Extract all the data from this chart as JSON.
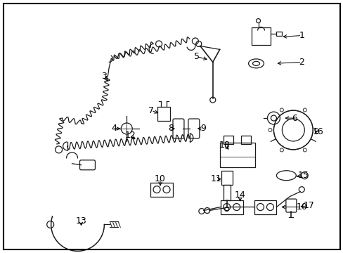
{
  "bg_color": "#ffffff",
  "border_color": "#000000",
  "fig_width": 4.89,
  "fig_height": 3.6,
  "dpi": 100,
  "lc": "#1a1a1a",
  "lw": 0.9
}
